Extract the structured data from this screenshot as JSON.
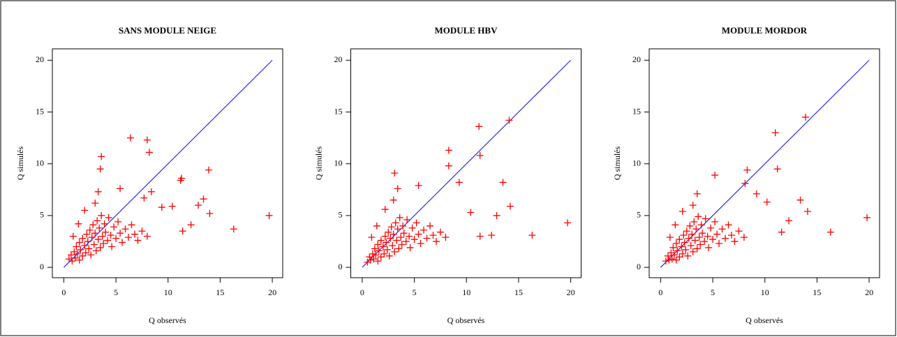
{
  "chart_data": [
    {
      "type": "scatter",
      "title": "SANS MODULE NEIGE",
      "xlabel": "Q observés",
      "ylabel": "Q simulés",
      "xlim": [
        -1.1,
        21.0
      ],
      "ylim": [
        -1.0,
        21.1
      ],
      "xticks": [
        0,
        5,
        10,
        15,
        20
      ],
      "yticks": [
        0,
        5,
        10,
        15,
        20
      ],
      "reference_line": {
        "x": [
          0,
          20
        ],
        "y": [
          0,
          20
        ],
        "color": "#0000ff"
      },
      "series": [
        {
          "color": "#ff0000",
          "x": [
            0.5,
            0.7,
            0.8,
            1.0,
            1.1,
            1.2,
            1.3,
            1.5,
            1.5,
            1.6,
            1.8,
            1.8,
            2.0,
            2.1,
            2.2,
            2.3,
            2.4,
            2.5,
            2.6,
            2.7,
            2.8,
            2.9,
            3.0,
            3.1,
            3.2,
            3.3,
            3.4,
            3.5,
            3.6,
            3.7,
            3.8,
            3.9,
            4.0,
            4.2,
            4.3,
            4.5,
            4.6,
            4.8,
            5.0,
            5.2,
            5.4,
            5.6,
            5.9,
            6.2,
            6.5,
            6.8,
            7.1,
            7.5,
            8.0,
            2.0,
            3.0,
            3.3,
            1.4,
            0.9,
            6.4,
            8.0,
            8.2,
            3.6,
            3.5,
            11.2,
            11.3,
            13.9,
            13.4,
            12.9,
            14.0,
            16.3,
            19.7,
            12.2,
            11.4,
            10.4,
            9.4,
            8.4,
            7.7,
            5.4
          ],
          "y": [
            0.8,
            1.2,
            0.6,
            1.5,
            0.9,
            2.0,
            1.3,
            0.7,
            2.4,
            1.7,
            1.1,
            2.8,
            2.1,
            1.4,
            3.2,
            2.5,
            1.8,
            3.6,
            1.2,
            2.9,
            4.1,
            2.2,
            3.3,
            1.6,
            4.5,
            2.7,
            3.8,
            1.9,
            5.0,
            3.0,
            2.3,
            4.2,
            3.4,
            2.6,
            4.8,
            3.1,
            2.0,
            3.9,
            2.8,
            4.4,
            3.3,
            2.4,
            3.7,
            2.9,
            4.1,
            3.2,
            2.6,
            3.5,
            3.0,
            5.5,
            6.2,
            7.3,
            4.2,
            3.0,
            12.5,
            12.3,
            11.1,
            10.7,
            9.5,
            8.4,
            8.6,
            9.4,
            6.6,
            6.0,
            5.2,
            3.7,
            5.0,
            4.1,
            3.5,
            5.9,
            5.8,
            7.3,
            6.7,
            7.6
          ]
        }
      ]
    },
    {
      "type": "scatter",
      "title": "MODULE HBV",
      "xlabel": "Q observés",
      "ylabel": "Q simulés",
      "xlim": [
        -1.1,
        21.0
      ],
      "ylim": [
        -1.0,
        21.1
      ],
      "xticks": [
        0,
        5,
        10,
        15,
        20
      ],
      "yticks": [
        0,
        5,
        10,
        15,
        20
      ],
      "reference_line": {
        "x": [
          0,
          20
        ],
        "y": [
          0,
          20
        ],
        "color": "#0000ff"
      },
      "series": [
        {
          "color": "#ff0000",
          "x": [
            0.5,
            0.7,
            0.8,
            1.0,
            1.1,
            1.2,
            1.3,
            1.5,
            1.5,
            1.6,
            1.8,
            1.8,
            2.0,
            2.1,
            2.2,
            2.3,
            2.4,
            2.5,
            2.6,
            2.7,
            2.8,
            2.9,
            3.0,
            3.1,
            3.2,
            3.3,
            3.4,
            3.5,
            3.6,
            3.7,
            3.8,
            3.9,
            4.0,
            4.2,
            4.3,
            4.5,
            4.6,
            4.8,
            5.0,
            5.2,
            5.4,
            5.6,
            5.9,
            6.2,
            6.5,
            6.8,
            7.1,
            7.5,
            8.0,
            2.2,
            3.0,
            3.4,
            1.4,
            0.9,
            11.2,
            14.1,
            8.3,
            11.3,
            13.5,
            14.2,
            9.3,
            8.3,
            16.3,
            19.7,
            12.4,
            11.3,
            12.9,
            10.4,
            3.1,
            5.4
          ],
          "y": [
            0.5,
            1.0,
            0.7,
            1.3,
            0.8,
            1.8,
            1.2,
            0.6,
            2.2,
            1.6,
            1.0,
            2.6,
            2.0,
            1.3,
            3.0,
            2.4,
            1.7,
            3.4,
            1.1,
            2.8,
            3.9,
            2.1,
            3.2,
            1.5,
            4.3,
            2.6,
            3.7,
            1.8,
            4.8,
            2.9,
            2.2,
            4.0,
            3.3,
            2.5,
            4.6,
            3.0,
            1.9,
            3.8,
            2.7,
            4.3,
            3.2,
            2.3,
            3.6,
            2.8,
            4.0,
            3.1,
            2.5,
            3.4,
            2.9,
            5.6,
            6.5,
            7.6,
            4.0,
            2.9,
            13.6,
            14.2,
            11.3,
            10.8,
            8.2,
            5.9,
            8.2,
            9.8,
            3.1,
            4.3,
            3.1,
            3.0,
            5.0,
            5.3,
            9.1,
            7.9
          ]
        }
      ]
    },
    {
      "type": "scatter",
      "title": "MODULE MORDOR",
      "xlabel": "Q observés",
      "ylabel": "Q simulés",
      "xlim": [
        -1.1,
        21.0
      ],
      "ylim": [
        -1.0,
        21.1
      ],
      "xticks": [
        0,
        5,
        10,
        15,
        20
      ],
      "yticks": [
        0,
        5,
        10,
        15,
        20
      ],
      "reference_line": {
        "x": [
          0,
          20
        ],
        "y": [
          0,
          20
        ],
        "color": "#0000ff"
      },
      "series": [
        {
          "color": "#ff0000",
          "x": [
            0.5,
            0.7,
            0.8,
            1.0,
            1.1,
            1.2,
            1.3,
            1.5,
            1.5,
            1.6,
            1.8,
            1.8,
            2.0,
            2.1,
            2.2,
            2.3,
            2.4,
            2.5,
            2.6,
            2.7,
            2.8,
            2.9,
            3.0,
            3.1,
            3.2,
            3.3,
            3.4,
            3.5,
            3.6,
            3.7,
            3.8,
            3.9,
            4.0,
            4.2,
            4.3,
            4.5,
            4.6,
            4.8,
            5.0,
            5.2,
            5.4,
            5.6,
            5.9,
            6.2,
            6.5,
            6.8,
            7.1,
            7.5,
            8.0,
            2.1,
            3.1,
            3.5,
            1.4,
            0.9,
            11.0,
            13.9,
            11.2,
            8.3,
            13.4,
            14.1,
            12.3,
            11.6,
            16.3,
            19.8,
            10.2,
            5.2,
            9.2,
            8.1
          ],
          "y": [
            0.6,
            1.1,
            0.7,
            1.4,
            0.8,
            1.9,
            1.2,
            0.7,
            2.3,
            1.6,
            1.0,
            2.7,
            2.0,
            1.3,
            3.1,
            2.4,
            1.7,
            3.5,
            1.1,
            2.8,
            4.0,
            2.1,
            3.2,
            1.5,
            4.4,
            2.6,
            3.7,
            1.8,
            4.9,
            2.9,
            2.2,
            4.1,
            3.3,
            2.5,
            4.7,
            3.0,
            1.9,
            3.8,
            2.7,
            4.4,
            3.2,
            2.3,
            3.7,
            2.8,
            4.1,
            3.1,
            2.5,
            3.5,
            2.9,
            5.4,
            6.0,
            7.1,
            4.1,
            2.9,
            13.0,
            14.5,
            9.5,
            9.4,
            6.5,
            5.4,
            4.5,
            3.4,
            3.4,
            4.8,
            6.3,
            8.9,
            7.1,
            8.1
          ]
        }
      ]
    }
  ]
}
